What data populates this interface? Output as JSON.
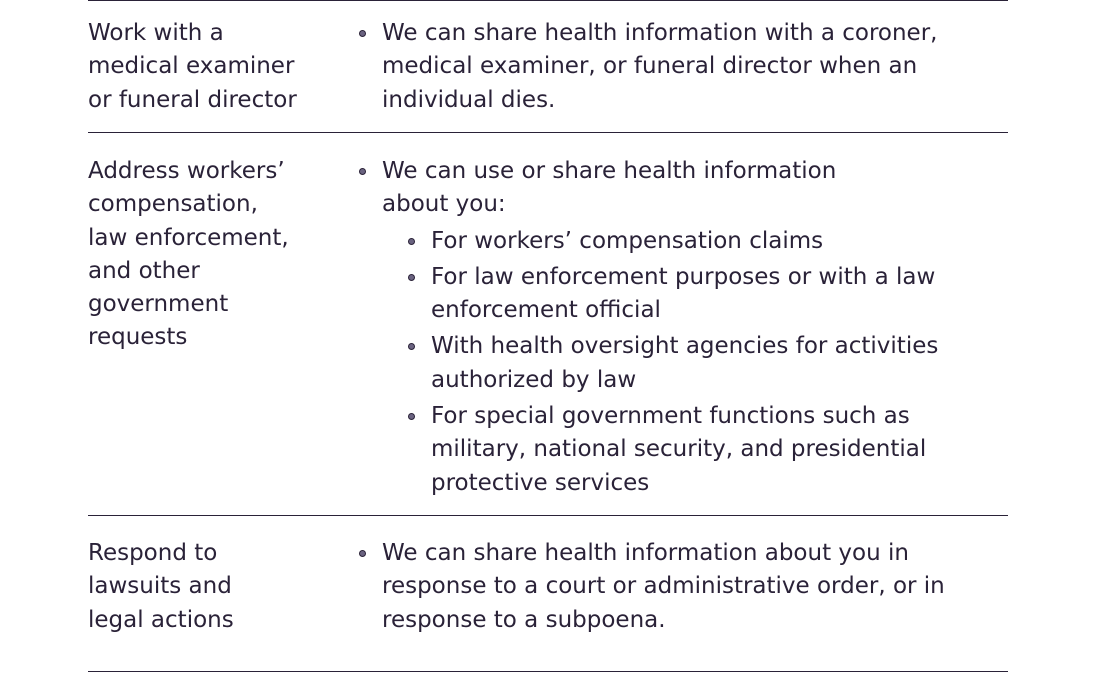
{
  "rows": [
    {
      "label": "Work with a\nmedical examiner\nor funeral director",
      "bullet": "We can share health information with a coroner,\nmedical examiner, or funeral director when an\nindividual dies."
    },
    {
      "label": "Address workers’\ncompensation,\nlaw enforcement,\nand other\ngovernment\nrequests",
      "bullet": "We can use or share health information\nabout you:",
      "subitems": [
        "For workers’ compensation claims",
        "For law enforcement purposes or with a law\nenforcement official",
        "With health oversight agencies for activities\nauthorized by law",
        "For special government functions such as\nmilitary, national security, and presidential\nprotective services"
      ]
    },
    {
      "label": "Respond to\nlawsuits and\nlegal actions",
      "bullet": "We can share health information about you in\nresponse to a court or administrative order, or in\nresponse to a subpoena."
    }
  ]
}
